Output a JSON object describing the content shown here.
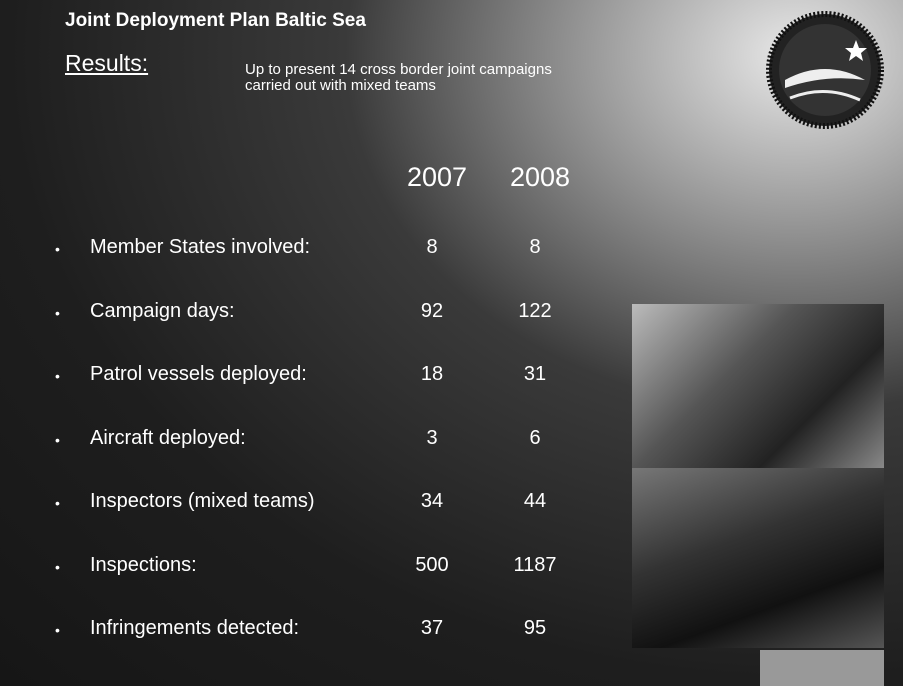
{
  "header": {
    "title": "Joint Deployment Plan Baltic Sea",
    "results_label": "Results:",
    "description_lines": [
      "Up to present 14 cross border joint campaigns",
      "carried out with mixed teams"
    ]
  },
  "table": {
    "columns": [
      "2007",
      "2008"
    ],
    "rows": [
      [
        "Member States involved:",
        8,
        8
      ],
      [
        "Campaign days:",
        92,
        122
      ],
      [
        "Patrol vessels deployed:",
        18,
        31
      ],
      [
        "Aircraft deployed:",
        3,
        6
      ],
      [
        "Inspectors (mixed teams)",
        34,
        44
      ],
      [
        "Inspections:",
        500,
        1187
      ],
      [
        "Infringements detected:",
        37,
        95
      ]
    ]
  }
}
